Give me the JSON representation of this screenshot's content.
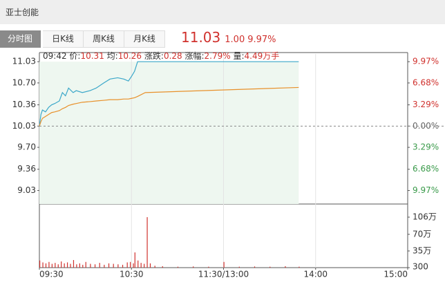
{
  "header": {
    "title": "亚士创能"
  },
  "tabs": [
    "分时图",
    "日K线",
    "周K线",
    "月K线"
  ],
  "quote": {
    "price": "11.03",
    "change": "1.00",
    "change_pct": "9.97%"
  },
  "info": {
    "time": "09:42",
    "items": [
      {
        "label": "价:",
        "value": "10.31"
      },
      {
        "label": "均:",
        "value": "10.26"
      },
      {
        "label": "涨跌:",
        "value": "0.28"
      },
      {
        "label": "涨幅:",
        "value": "2.79%"
      },
      {
        "label": "量:",
        "value": "4.49万手"
      }
    ]
  },
  "chart_data": [
    {
      "type": "line",
      "up_color": "#d0312d",
      "down_color": "#3a9a4a",
      "flat_color": "#666666",
      "x": [
        0,
        1,
        2,
        4,
        6,
        8,
        10,
        13,
        15,
        17,
        19,
        22,
        24,
        28,
        33,
        37,
        42,
        46,
        51,
        55,
        58,
        60,
        62,
        64,
        69,
        169
      ],
      "xlim": [
        0,
        240
      ],
      "series": [
        {
          "name": "价",
          "color": "#3aa7c9",
          "values": [
            10.03,
            10.21,
            10.28,
            10.25,
            10.32,
            10.36,
            10.38,
            10.42,
            10.55,
            10.5,
            10.62,
            10.55,
            10.58,
            10.55,
            10.58,
            10.62,
            10.7,
            10.76,
            10.78,
            10.76,
            10.73,
            10.8,
            10.88,
            11.03,
            11.03,
            11.03
          ]
        },
        {
          "name": "均",
          "color": "#e8902a",
          "values": [
            10.03,
            10.1,
            10.15,
            10.18,
            10.21,
            10.24,
            10.25,
            10.27,
            10.3,
            10.32,
            10.35,
            10.37,
            10.38,
            10.4,
            10.41,
            10.42,
            10.43,
            10.44,
            10.44,
            10.45,
            10.45,
            10.46,
            10.47,
            10.49,
            10.55,
            10.63
          ]
        }
      ],
      "ylim": [
        8.82,
        11.15
      ],
      "yticks": [
        11.03,
        {
          "value": 10.7,
          "label": "10.70"
        },
        10.36,
        10.03,
        {
          "value": 9.7,
          "label": "9.70"
        },
        9.36,
        9.03
      ],
      "y2lim": [
        -12.06,
        11.17
      ],
      "y2ticks": [
        {
          "value": 9.97,
          "label": "9.97%"
        },
        {
          "value": 6.68,
          "label": "6.68%"
        },
        {
          "value": 3.29,
          "label": "3.29%"
        },
        {
          "value": 0,
          "label": "0.00%"
        },
        {
          "value": -3.29,
          "label": "3.29%"
        },
        {
          "value": -6.68,
          "label": "6.68%"
        },
        {
          "value": -9.97,
          "label": "9.97%"
        }
      ]
    },
    {
      "type": "bar",
      "color": "#d0312d",
      "x": [
        0,
        2,
        4,
        6,
        8,
        10,
        12,
        14,
        16,
        18,
        20,
        22,
        24,
        26,
        28,
        30,
        33,
        36,
        39,
        42,
        45,
        48,
        51,
        54,
        57,
        59,
        61,
        62,
        64,
        66,
        68,
        70,
        72,
        75,
        80,
        90,
        100,
        110,
        120,
        130,
        140,
        150,
        160,
        169
      ],
      "values": [
        150000,
        110000,
        90000,
        120000,
        80000,
        100000,
        70000,
        130000,
        90000,
        110000,
        80000,
        160000,
        70000,
        90000,
        60000,
        120000,
        80000,
        70000,
        100000,
        60000,
        90000,
        80000,
        70000,
        60000,
        110000,
        120000,
        90000,
        320000,
        150000,
        100000,
        80000,
        1060000,
        90000,
        40000,
        30000,
        20000,
        25000,
        20000,
        120000,
        20000,
        25000,
        20000,
        30000,
        20000
      ],
      "xlim": [
        0,
        240
      ],
      "xticks": [
        {
          "value": 0,
          "label": "09:30"
        },
        {
          "value": 60,
          "label": "10:30"
        },
        {
          "value": 120,
          "label": "11:30/13:00"
        },
        {
          "value": 180,
          "label": "14:00"
        },
        {
          "value": 240,
          "label": "15:00"
        }
      ],
      "ylim": [
        300,
        1307000
      ],
      "yticks": [
        {
          "value": 1060000,
          "label": "106万"
        },
        {
          "value": 700000,
          "label": "70万"
        },
        {
          "value": 350000,
          "label": "35万"
        },
        300
      ]
    }
  ]
}
